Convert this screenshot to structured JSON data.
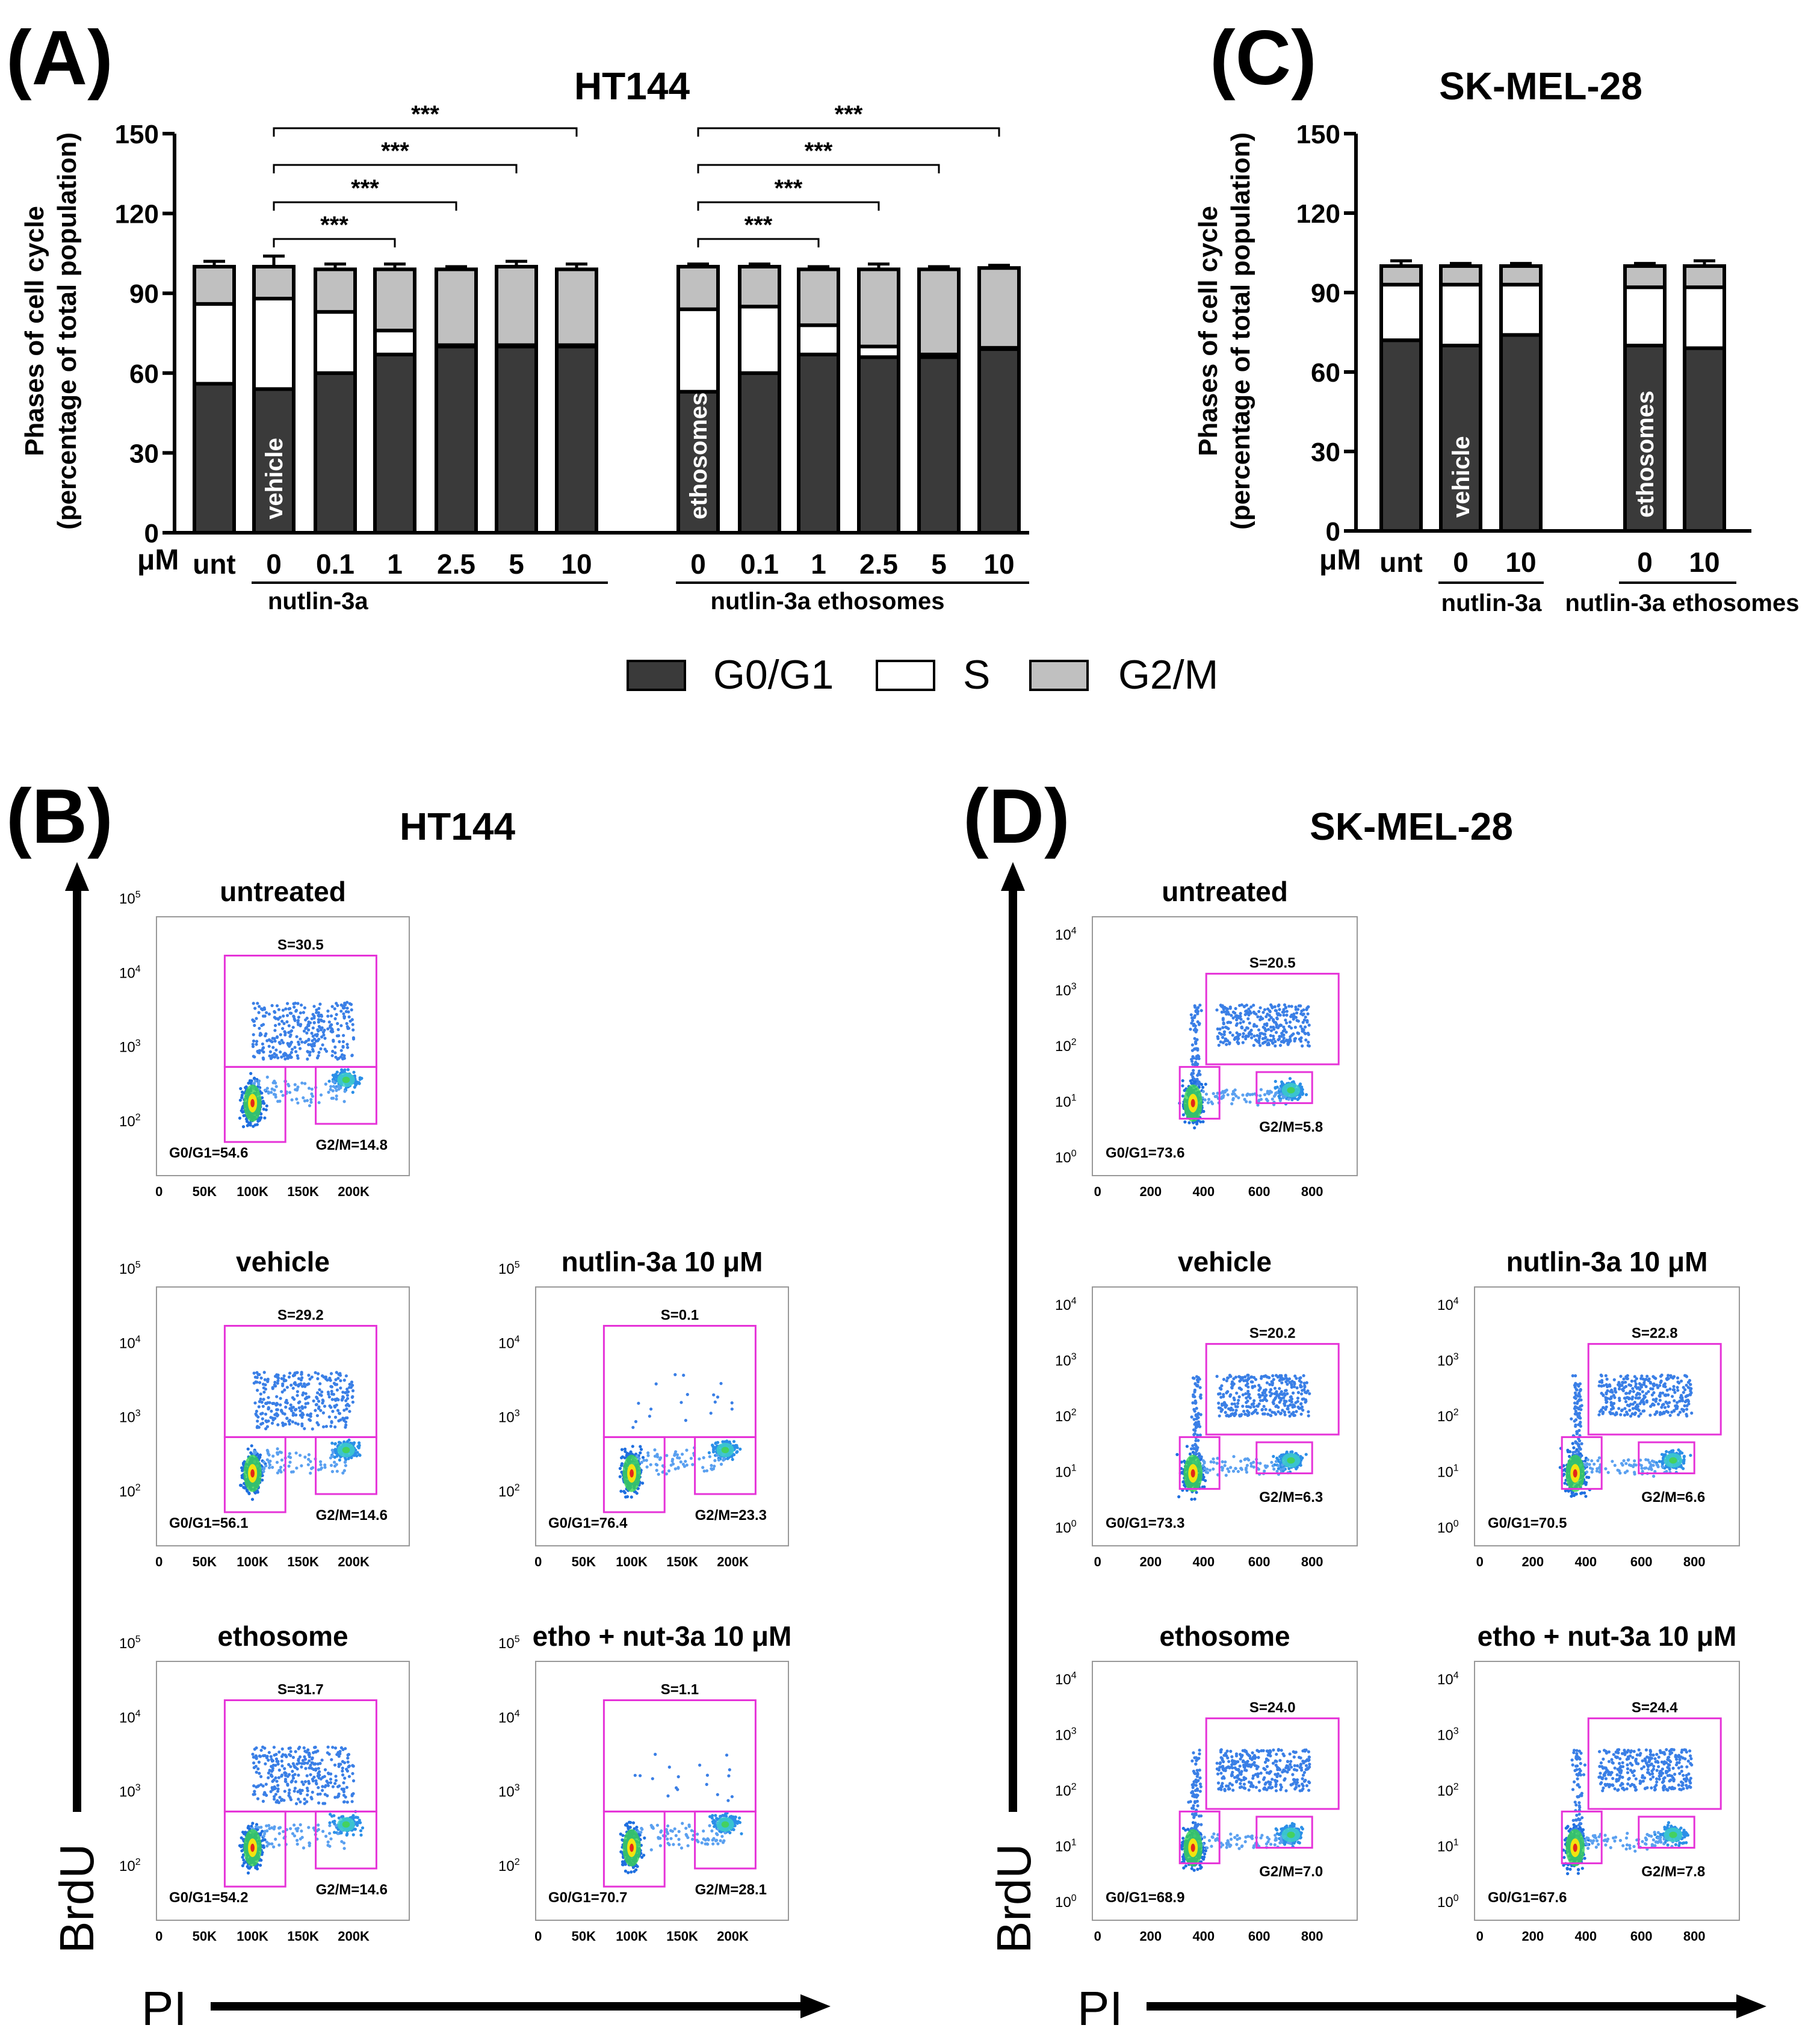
{
  "panels": {
    "A": {
      "letter": "(A)",
      "title": "HT144",
      "ylabel_line1": "Phases of cell cycle",
      "ylabel_line2": "(percentage of total population)",
      "unit_label": "μM",
      "group_labels": [
        "nutlin-3a",
        "nutlin-3a ethosomes"
      ],
      "bar_inner_labels": [
        "vehicle",
        "ethosomes"
      ],
      "significance": "***"
    },
    "B": {
      "letter": "(B)",
      "title": "HT144",
      "y_axis_label": "BrdU",
      "x_axis_label": "PI"
    },
    "C": {
      "letter": "(C)",
      "title": "SK-MEL-28",
      "ylabel_line1": "Phases of cell cycle",
      "ylabel_line2": "(percentage of total population)",
      "unit_label": "μM",
      "group_labels": [
        "nutlin-3a",
        "nutlin-3a ethosomes"
      ],
      "bar_inner_labels": [
        "vehicle",
        "ethosomes"
      ]
    },
    "D": {
      "letter": "(D)",
      "title": "SK-MEL-28",
      "y_axis_label": "BrdU",
      "x_axis_label": "PI"
    }
  },
  "legend": [
    {
      "label": "G0/G1",
      "color": "#3a3a3a"
    },
    {
      "label": "S",
      "color": "#ffffff"
    },
    {
      "label": "G2/M",
      "color": "#c0c0c0"
    }
  ],
  "chart_data": [
    {
      "id": "A",
      "type": "bar",
      "stacked": true,
      "title": "HT144",
      "ylabel": "Phases of cell cycle (percentage of total population)",
      "ylim": [
        0,
        150
      ],
      "yticks": [
        0,
        30,
        60,
        90,
        120,
        150
      ],
      "categories": [
        "unt",
        "0",
        "0.1",
        "1",
        "2.5",
        "5",
        "10",
        "0",
        "0.1",
        "1",
        "2.5",
        "5",
        "10"
      ],
      "series": [
        {
          "name": "G0/G1",
          "values": [
            56,
            54,
            60,
            67,
            70,
            70,
            70,
            53,
            60,
            67,
            66,
            66,
            69
          ],
          "errors": [
            6,
            6,
            3,
            2,
            1,
            2,
            1,
            4,
            2,
            1,
            1,
            1,
            1
          ]
        },
        {
          "name": "S",
          "values": [
            30,
            34,
            23,
            9,
            0.5,
            0.5,
            0.5,
            31,
            25,
            11,
            4,
            1,
            0.5
          ],
          "errors": [
            5,
            3,
            4,
            2,
            0,
            0,
            0,
            5,
            2,
            2,
            2,
            0,
            0
          ]
        },
        {
          "name": "G2/M",
          "values": [
            14,
            12,
            16,
            23,
            28.5,
            29.5,
            28.5,
            16,
            15,
            21,
            29,
            32,
            30
          ],
          "errors": [
            2,
            4,
            2,
            2,
            1,
            2,
            2,
            1,
            1,
            1,
            2,
            1,
            1
          ]
        }
      ],
      "significance": [
        {
          "from": 1,
          "to": 3,
          "label": "***"
        },
        {
          "from": 1,
          "to": 4,
          "label": "***"
        },
        {
          "from": 1,
          "to": 5,
          "label": "***"
        },
        {
          "from": 1,
          "to": 6,
          "label": "***"
        },
        {
          "from": 7,
          "to": 9,
          "label": "***"
        },
        {
          "from": 7,
          "to": 10,
          "label": "***"
        },
        {
          "from": 7,
          "to": 11,
          "label": "***"
        },
        {
          "from": 7,
          "to": 12,
          "label": "***"
        }
      ]
    },
    {
      "id": "C",
      "type": "bar",
      "stacked": true,
      "title": "SK-MEL-28",
      "ylabel": "Phases of cell cycle (percentage of total population)",
      "ylim": [
        0,
        150
      ],
      "yticks": [
        0,
        30,
        60,
        90,
        120,
        150
      ],
      "categories": [
        "unt",
        "0",
        "10",
        "0",
        "10"
      ],
      "series": [
        {
          "name": "G0/G1",
          "values": [
            72,
            70,
            74,
            70,
            69
          ],
          "errors": [
            2,
            1,
            1,
            1,
            2
          ]
        },
        {
          "name": "S",
          "values": [
            21,
            23,
            19,
            22,
            23
          ],
          "errors": [
            2,
            1,
            1,
            2,
            2
          ]
        },
        {
          "name": "G2/M",
          "values": [
            7,
            7,
            7,
            8,
            8
          ],
          "errors": [
            2,
            1,
            1,
            1,
            2
          ]
        }
      ]
    },
    {
      "id": "B",
      "type": "scatter",
      "title": "HT144",
      "xlabel": "PI",
      "ylabel": "BrdU",
      "x_ticks": [
        "0",
        "50K",
        "100K",
        "150K",
        "200K"
      ],
      "y_ticks": [
        "10^2",
        "10^3",
        "10^4",
        "10^5"
      ],
      "plots": [
        {
          "title": "untreated",
          "S": "S=30.5",
          "G0G1": "G0/G1=54.6",
          "G2M": "G2/M=14.8"
        },
        {
          "title": "vehicle",
          "S": "S=29.2",
          "G0G1": "G0/G1=56.1",
          "G2M": "G2/M=14.6"
        },
        {
          "title": "nutlin-3a 10 μM",
          "S": "S=0.1",
          "G0G1": "G0/G1=76.4",
          "G2M": "G2/M=23.3"
        },
        {
          "title": "ethosome",
          "S": "S=31.7",
          "G0G1": "G0/G1=54.2",
          "G2M": "G2/M=14.6"
        },
        {
          "title": "etho + nut-3a 10 μM",
          "S": "S=1.1",
          "G0G1": "G0/G1=70.7",
          "G2M": "G2/M=28.1"
        }
      ]
    },
    {
      "id": "D",
      "type": "scatter",
      "title": "SK-MEL-28",
      "xlabel": "PI",
      "ylabel": "BrdU",
      "x_ticks": [
        "0",
        "200",
        "400",
        "600",
        "800"
      ],
      "y_ticks": [
        "10^0",
        "10^1",
        "10^2",
        "10^3",
        "10^4"
      ],
      "plots": [
        {
          "title": "untreated",
          "S": "S=20.5",
          "G0G1": "G0/G1=73.6",
          "G2M": "G2/M=5.8"
        },
        {
          "title": "vehicle",
          "S": "S=20.2",
          "G0G1": "G0/G1=73.3",
          "G2M": "G2/M=6.3"
        },
        {
          "title": "nutlin-3a 10 μM",
          "S": "S=22.8",
          "G0G1": "G0/G1=70.5",
          "G2M": "G2/M=6.6"
        },
        {
          "title": "ethosome",
          "S": "S=24.0",
          "G0G1": "G0/G1=68.9",
          "G2M": "G2/M=7.0"
        },
        {
          "title": "etho + nut-3a 10 μM",
          "S": "S=24.4",
          "G0G1": "G0/G1=67.6",
          "G2M": "G2/M=7.8"
        }
      ]
    }
  ]
}
